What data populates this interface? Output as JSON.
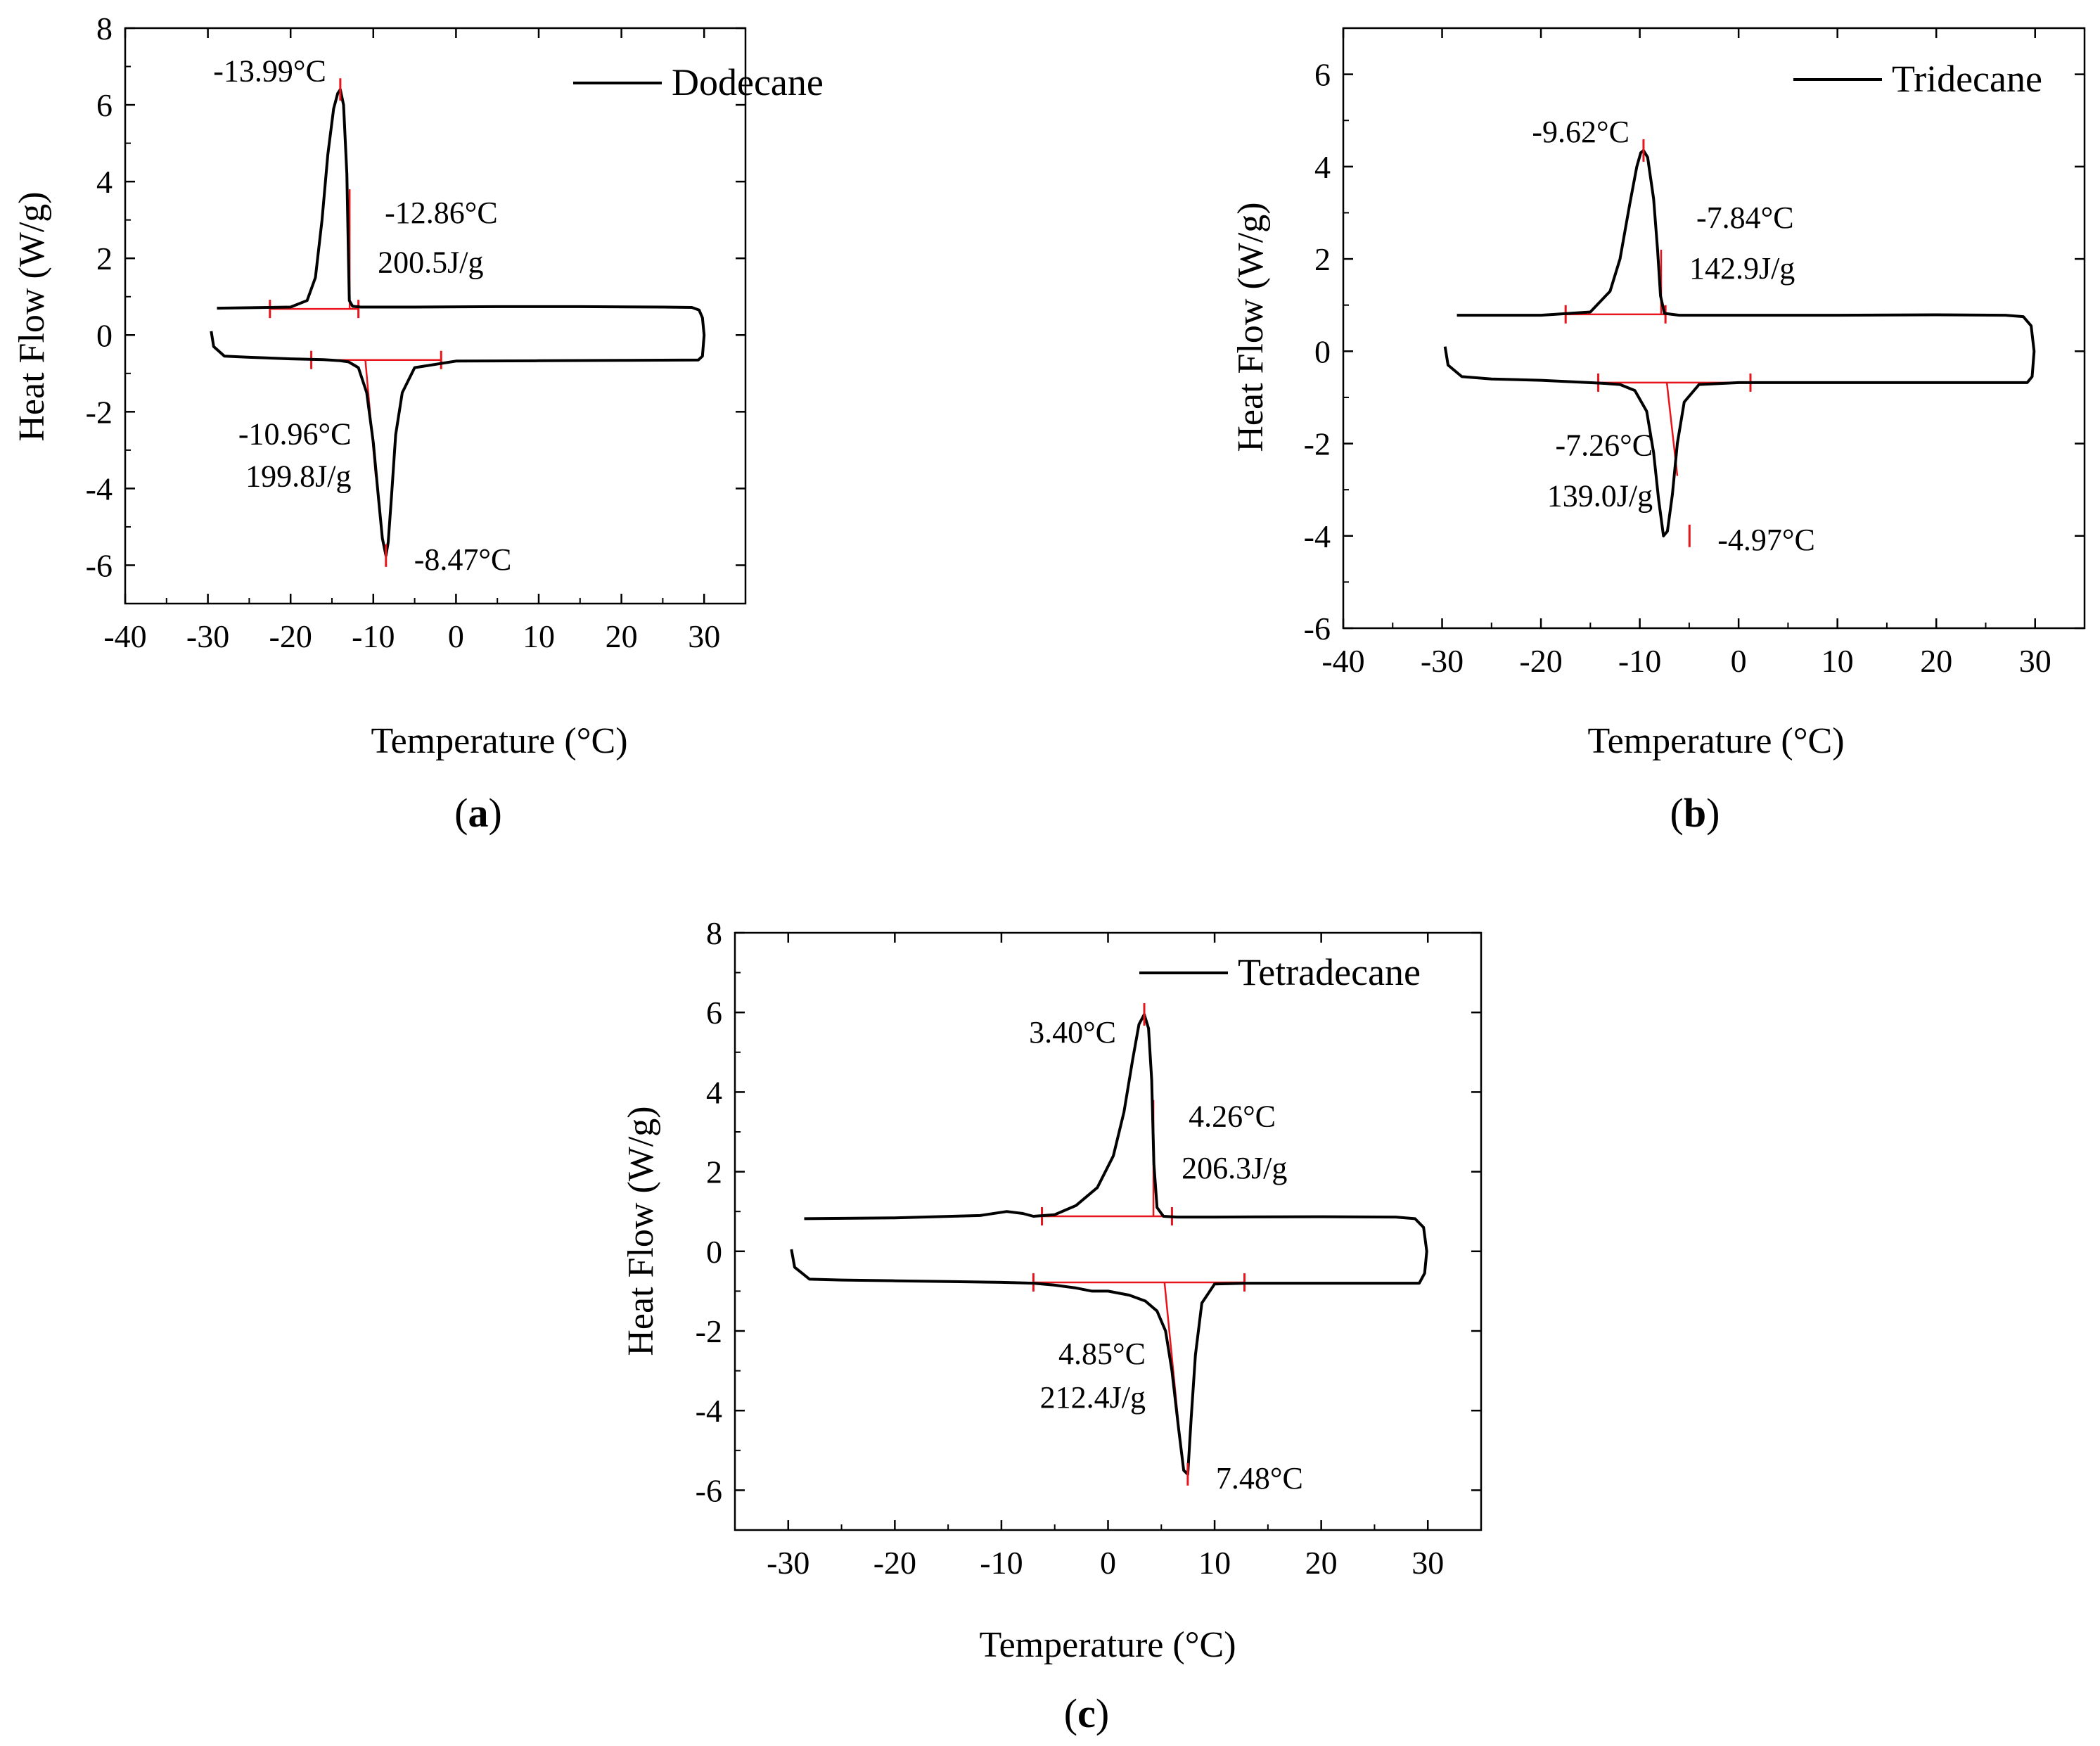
{
  "chart_data": [
    {
      "id": "a",
      "type": "line",
      "panel_label": "(a)",
      "panel_letter": "a",
      "legend": "Dodecane",
      "xlabel": "Temperature (°C)",
      "ylabel": "Heat Flow (W/g)",
      "xlim": [
        -40,
        35
      ],
      "ylim": [
        -7,
        8
      ],
      "xticks": [
        -40,
        -30,
        -20,
        -10,
        0,
        10,
        20,
        30
      ],
      "yticks": [
        -6,
        -4,
        -2,
        0,
        2,
        4,
        6,
        8
      ],
      "series": [
        {
          "name": "Dodecane",
          "color": "#000000",
          "x": [
            -28.9,
            -20,
            -18,
            -17,
            -16.2,
            -15.5,
            -14.8,
            -14.3,
            -13.99,
            -13.6,
            -13.2,
            -13.0,
            -12.9,
            -12.5,
            -11.5,
            -5,
            5,
            15,
            25,
            28.5,
            29.4,
            29.8,
            30.0,
            29.8,
            29.3,
            20,
            10,
            0,
            -5,
            -6.5,
            -7.3,
            -7.8,
            -8.2,
            -8.47,
            -8.9,
            -9.4,
            -10.0,
            -10.8,
            -11.8,
            -13,
            -14,
            -16,
            -20,
            -25,
            -28,
            -29.3,
            -29.6
          ],
          "y": [
            0.7,
            0.73,
            0.9,
            1.5,
            3.0,
            4.7,
            5.9,
            6.3,
            6.4,
            6.0,
            4.2,
            2.0,
            0.9,
            0.75,
            0.73,
            0.73,
            0.74,
            0.74,
            0.73,
            0.72,
            0.65,
            0.45,
            0.0,
            -0.55,
            -0.65,
            -0.66,
            -0.67,
            -0.68,
            -0.85,
            -1.5,
            -2.6,
            -4.2,
            -5.4,
            -5.75,
            -5.3,
            -4.2,
            -2.8,
            -1.5,
            -0.85,
            -0.7,
            -0.67,
            -0.64,
            -0.62,
            -0.58,
            -0.55,
            -0.3,
            0.1
          ]
        }
      ],
      "annotations": [
        {
          "text": "-13.99°C",
          "x": -13.99,
          "y": 6.4
        },
        {
          "text": "-12.86°C",
          "x": -12.86,
          "y": 3.2
        },
        {
          "text": "200.5J/g",
          "x": -12.86,
          "y": 1.9
        },
        {
          "text": "-10.96°C",
          "x": -10.96,
          "y": -2.3
        },
        {
          "text": "199.8J/g",
          "x": -10.96,
          "y": -3.4
        },
        {
          "text": "-8.47°C",
          "x": -8.47,
          "y": -5.75
        }
      ],
      "onset_lines": [
        {
          "x1": -22.5,
          "y1": 0.68,
          "x2": -11.8,
          "y2": 0.68
        },
        {
          "x1": -12.86,
          "y1": 3.8,
          "x2": -12.86,
          "y2": 0.68
        },
        {
          "x1": -17.5,
          "y1": -0.65,
          "x2": -1.8,
          "y2": -0.65
        },
        {
          "x1": -10.96,
          "y1": -0.65,
          "x2": -9.7,
          "y2": -3.7
        }
      ],
      "onset_ticks": [
        {
          "x": -22.5,
          "y": 0.68
        },
        {
          "x": -11.8,
          "y": 0.68
        },
        {
          "x": -17.5,
          "y": -0.65
        },
        {
          "x": -1.8,
          "y": -0.65
        }
      ],
      "peak_ticks": [
        {
          "x": -13.99,
          "y": 6.4
        },
        {
          "x": -8.47,
          "y": -5.75
        }
      ]
    },
    {
      "id": "b",
      "type": "line",
      "panel_label": "(b)",
      "panel_letter": "b",
      "legend": "Tridecane",
      "xlabel": "Temperature (°C)",
      "ylabel": "Heat Flow (W/g)",
      "xlim": [
        -40,
        35
      ],
      "ylim": [
        -6,
        7
      ],
      "xticks": [
        -40,
        -30,
        -20,
        -10,
        0,
        10,
        20,
        30
      ],
      "yticks": [
        -6,
        -4,
        -2,
        0,
        2,
        4,
        6
      ],
      "series": [
        {
          "name": "Tridecane",
          "color": "#000000",
          "x": [
            -28.5,
            -20,
            -15,
            -13,
            -12,
            -11,
            -10.3,
            -9.9,
            -9.62,
            -9.2,
            -8.6,
            -8.2,
            -7.9,
            -7.5,
            -6,
            0,
            10,
            20,
            27,
            28.8,
            29.6,
            29.9,
            29.7,
            29.2,
            20,
            10,
            0,
            -4,
            -5.5,
            -6.2,
            -6.7,
            -7.2,
            -7.6,
            -8.1,
            -8.6,
            -9.3,
            -10.5,
            -12,
            -14,
            -17,
            -20,
            -25,
            -28,
            -29.4,
            -29.7
          ],
          "y": [
            0.78,
            0.78,
            0.85,
            1.3,
            2.0,
            3.2,
            4.0,
            4.3,
            4.35,
            4.2,
            3.3,
            2.2,
            1.2,
            0.82,
            0.78,
            0.78,
            0.78,
            0.79,
            0.78,
            0.75,
            0.55,
            0.0,
            -0.55,
            -0.68,
            -0.68,
            -0.68,
            -0.68,
            -0.72,
            -1.1,
            -2.0,
            -3.1,
            -3.9,
            -4.0,
            -3.2,
            -2.2,
            -1.3,
            -0.85,
            -0.72,
            -0.69,
            -0.66,
            -0.63,
            -0.6,
            -0.55,
            -0.3,
            0.1
          ]
        }
      ],
      "annotations": [
        {
          "text": "-9.62°C",
          "x": -9.62,
          "y": 4.35
        },
        {
          "text": "-7.84°C",
          "x": -7.84,
          "y": 2.9
        },
        {
          "text": "142.9J/g",
          "x": -7.84,
          "y": 1.8
        },
        {
          "text": "-7.26°C",
          "x": -7.26,
          "y": -1.8
        },
        {
          "text": "139.0J/g",
          "x": -7.26,
          "y": -2.9
        },
        {
          "text": "-4.97°C",
          "x": -4.97,
          "y": -4.0
        }
      ],
      "onset_lines": [
        {
          "x1": -17.5,
          "y1": 0.8,
          "x2": -7.4,
          "y2": 0.8
        },
        {
          "x1": -7.84,
          "y1": 2.2,
          "x2": -7.84,
          "y2": 0.8
        },
        {
          "x1": -14.2,
          "y1": -0.68,
          "x2": 1.2,
          "y2": -0.68
        },
        {
          "x1": -7.26,
          "y1": -0.68,
          "x2": -6.2,
          "y2": -2.7
        }
      ],
      "onset_ticks": [
        {
          "x": -17.5,
          "y": 0.8
        },
        {
          "x": -7.4,
          "y": 0.8
        },
        {
          "x": -14.2,
          "y": -0.68
        },
        {
          "x": 1.2,
          "y": -0.68
        }
      ],
      "peak_ticks": [
        {
          "x": -9.62,
          "y": 4.35
        },
        {
          "x": -4.97,
          "y": -4.0
        }
      ]
    },
    {
      "id": "c",
      "type": "line",
      "panel_label": "(c)",
      "panel_letter": "c",
      "legend": "Tetradecane",
      "xlabel": "Temperature (°C)",
      "ylabel": "Heat Flow (W/g)",
      "xlim": [
        -35,
        35
      ],
      "ylim": [
        -7,
        8
      ],
      "xticks": [
        -30,
        -20,
        -10,
        0,
        10,
        20,
        30
      ],
      "yticks": [
        -6,
        -4,
        -2,
        0,
        2,
        4,
        6,
        8
      ],
      "series": [
        {
          "name": "Tetradecane",
          "color": "#000000",
          "x": [
            -28.5,
            -20,
            -12,
            -9.5,
            -8,
            -7,
            -5,
            -3,
            -1,
            0.5,
            1.5,
            2.3,
            2.9,
            3.4,
            3.8,
            4.1,
            4.3,
            4.6,
            5.2,
            6.5,
            10,
            20,
            27,
            28.8,
            29.6,
            29.9,
            29.7,
            29.2,
            20,
            13,
            10,
            8.8,
            8.2,
            7.8,
            7.48,
            7.1,
            6.6,
            6.0,
            5.4,
            4.6,
            3.5,
            2,
            0,
            -1.5,
            -3,
            -5,
            -7,
            -10,
            -15,
            -20,
            -25,
            -28,
            -29.4,
            -29.7
          ],
          "y": [
            0.82,
            0.84,
            0.9,
            1.0,
            0.95,
            0.88,
            0.92,
            1.15,
            1.6,
            2.4,
            3.5,
            4.8,
            5.7,
            5.95,
            5.6,
            4.3,
            2.2,
            1.1,
            0.88,
            0.86,
            0.86,
            0.87,
            0.86,
            0.82,
            0.6,
            0.0,
            -0.55,
            -0.8,
            -0.8,
            -0.8,
            -0.82,
            -1.3,
            -2.6,
            -4.2,
            -5.6,
            -5.5,
            -4.4,
            -3.0,
            -2.0,
            -1.5,
            -1.25,
            -1.1,
            -1.0,
            -1.0,
            -0.92,
            -0.85,
            -0.8,
            -0.78,
            -0.76,
            -0.74,
            -0.72,
            -0.7,
            -0.4,
            0.05
          ]
        }
      ],
      "annotations": [
        {
          "text": "3.40°C",
          "x": 3.4,
          "y": 5.95
        },
        {
          "text": "4.26°C",
          "x": 4.26,
          "y": 3.4
        },
        {
          "text": "206.3J/g",
          "x": 4.26,
          "y": 2.1
        },
        {
          "text": "4.85°C",
          "x": 4.85,
          "y": -2.3
        },
        {
          "text": "212.4J/g",
          "x": 4.85,
          "y": -3.4
        },
        {
          "text": "7.48°C",
          "x": 7.48,
          "y": -5.6
        }
      ],
      "onset_lines": [
        {
          "x1": -6.2,
          "y1": 0.88,
          "x2": 6.0,
          "y2": 0.88
        },
        {
          "x1": 4.26,
          "y1": 3.8,
          "x2": 4.26,
          "y2": 0.88
        },
        {
          "x1": -7.0,
          "y1": -0.78,
          "x2": 12.8,
          "y2": -0.78
        },
        {
          "x1": 5.3,
          "y1": -0.78,
          "x2": 6.6,
          "y2": -4.3
        }
      ],
      "onset_ticks": [
        {
          "x": -6.2,
          "y": 0.88
        },
        {
          "x": 6.0,
          "y": 0.88
        },
        {
          "x": -7.0,
          "y": -0.78
        },
        {
          "x": 12.8,
          "y": -0.78
        }
      ],
      "peak_ticks": [
        {
          "x": 3.4,
          "y": 5.95
        },
        {
          "x": 7.48,
          "y": -5.6
        }
      ]
    }
  ]
}
